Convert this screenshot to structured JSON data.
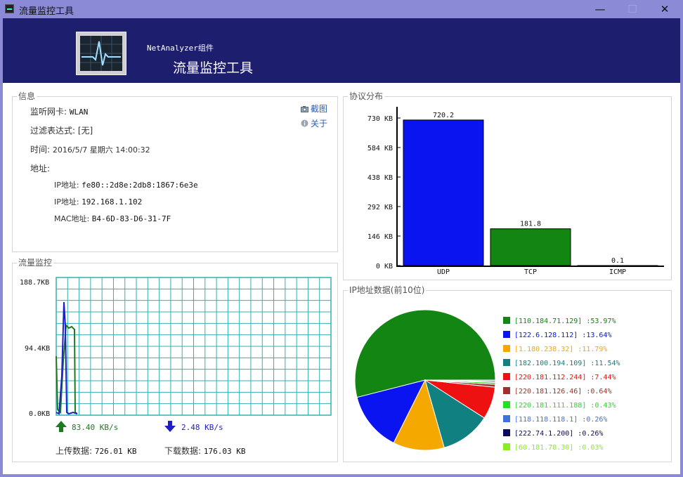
{
  "window": {
    "title": "流量监控工具",
    "buttons": {
      "minimize": "—",
      "maximize": "☐",
      "close": "✕"
    }
  },
  "banner": {
    "subtitle": "NetAnalyzer组件",
    "title": "流量监控工具"
  },
  "info": {
    "group_title": "信息",
    "nic_label": "监听网卡:",
    "nic_value": "WLAN",
    "filter_label": "过滤表达式:",
    "filter_value": "[无]",
    "time_label": "时间:",
    "time_value": "2016/5/7 星期六 14:00:32",
    "address_label": "地址:",
    "ipv6_label": "IP地址:",
    "ipv6_value": "fe80::2d8e:2db8:1867:6e3e",
    "ipv4_label": "IP地址:",
    "ipv4_value": "192.168.1.102",
    "mac_label": "MAC地址:",
    "mac_value": "B4-6D-83-D6-31-7F",
    "screenshot_link": "截图",
    "about_link": "关于"
  },
  "traffic": {
    "group_title": "流量监控",
    "y_ticks": [
      "188.7KB",
      "94.4KB",
      "0.0KB"
    ],
    "upload_rate": "83.40 KB/s",
    "download_rate": "2.48 KB/s",
    "upload_total_label": "上传数据:",
    "upload_total_value": "726.01 KB",
    "download_total_label": "下载数据:",
    "download_total_value": "176.03 KB",
    "colors": {
      "upload": "#1e7a1e",
      "download": "#1e1ec8",
      "grid": "#33b0b0"
    }
  },
  "protocol": {
    "group_title": "协议分布",
    "y_ticks": [
      "730 KB",
      "584 KB",
      "438 KB",
      "292 KB",
      "146 KB",
      "0 KB"
    ]
  },
  "ipdata": {
    "group_title": "IP地址数据(前10位)"
  },
  "chart_data": [
    {
      "type": "bar",
      "categories": [
        "UDP",
        "TCP",
        "ICMP"
      ],
      "values": [
        720.2,
        181.8,
        0.1
      ],
      "data_labels": [
        "720.2",
        "181.8",
        "0.1"
      ],
      "colors": [
        "#0a14f0",
        "#138513",
        "#0a14f0"
      ],
      "ylim": [
        0,
        730
      ],
      "ylabel": "",
      "xlabel": "",
      "title": ""
    },
    {
      "type": "pie",
      "slices": [
        {
          "label": "[110.184.71.129] :53.97%",
          "value": 53.97,
          "color": "#138513"
        },
        {
          "label": "[122.6.128.112] :13.64%",
          "value": 13.64,
          "color": "#0a14f0"
        },
        {
          "label": "[1.180.238.32] :11.79%",
          "value": 11.79,
          "color": "#f5a800"
        },
        {
          "label": "[182.100.194.109] :11.54%",
          "value": 11.54,
          "color": "#108080"
        },
        {
          "label": "[220.181.112.244] :7.44%",
          "value": 7.44,
          "color": "#ee1111"
        },
        {
          "label": "[220.181.126.46] :0.64%",
          "value": 0.64,
          "color": "#a03030"
        },
        {
          "label": "[220.181.111.188] :0.43%",
          "value": 0.43,
          "color": "#22e022"
        },
        {
          "label": "[118.118.118.1] :0.26%",
          "value": 0.26,
          "color": "#4070e0"
        },
        {
          "label": "[222.74.1.200] :0.26%",
          "value": 0.26,
          "color": "#0a0a60"
        },
        {
          "label": "[60.181.78.30] :0.03%",
          "value": 0.03,
          "color": "#88ee22"
        }
      ]
    }
  ]
}
